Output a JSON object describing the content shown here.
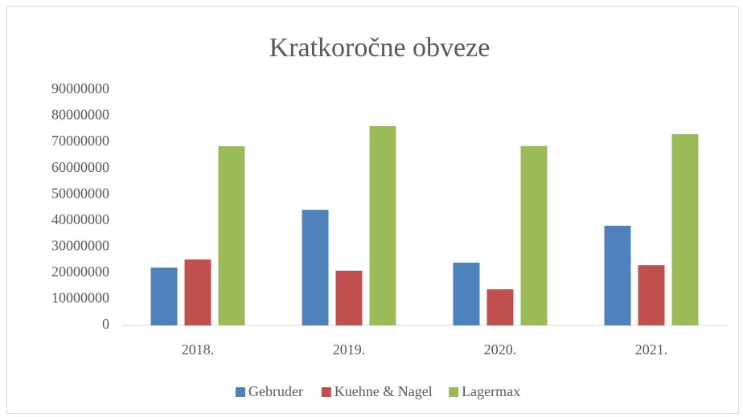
{
  "chart_data": {
    "type": "bar",
    "title": "Kratkoročne obveze",
    "categories": [
      "2018.",
      "2019.",
      "2020.",
      "2021."
    ],
    "series": [
      {
        "name": "Gebruder",
        "color": "#4f81bd",
        "values": [
          22100000,
          44200000,
          24000000,
          38100000
        ]
      },
      {
        "name": "Kuehne & Nagel",
        "color": "#c0504d",
        "values": [
          25200000,
          20900000,
          13800000,
          23000000
        ]
      },
      {
        "name": "Lagermax",
        "color": "#9bbb59",
        "values": [
          68500000,
          76200000,
          68600000,
          73100000
        ]
      }
    ],
    "ylim": [
      0,
      90000000
    ],
    "yticks": [
      0,
      10000000,
      20000000,
      30000000,
      40000000,
      50000000,
      60000000,
      70000000,
      80000000,
      90000000
    ],
    "grid": false,
    "legend": "bottom"
  }
}
